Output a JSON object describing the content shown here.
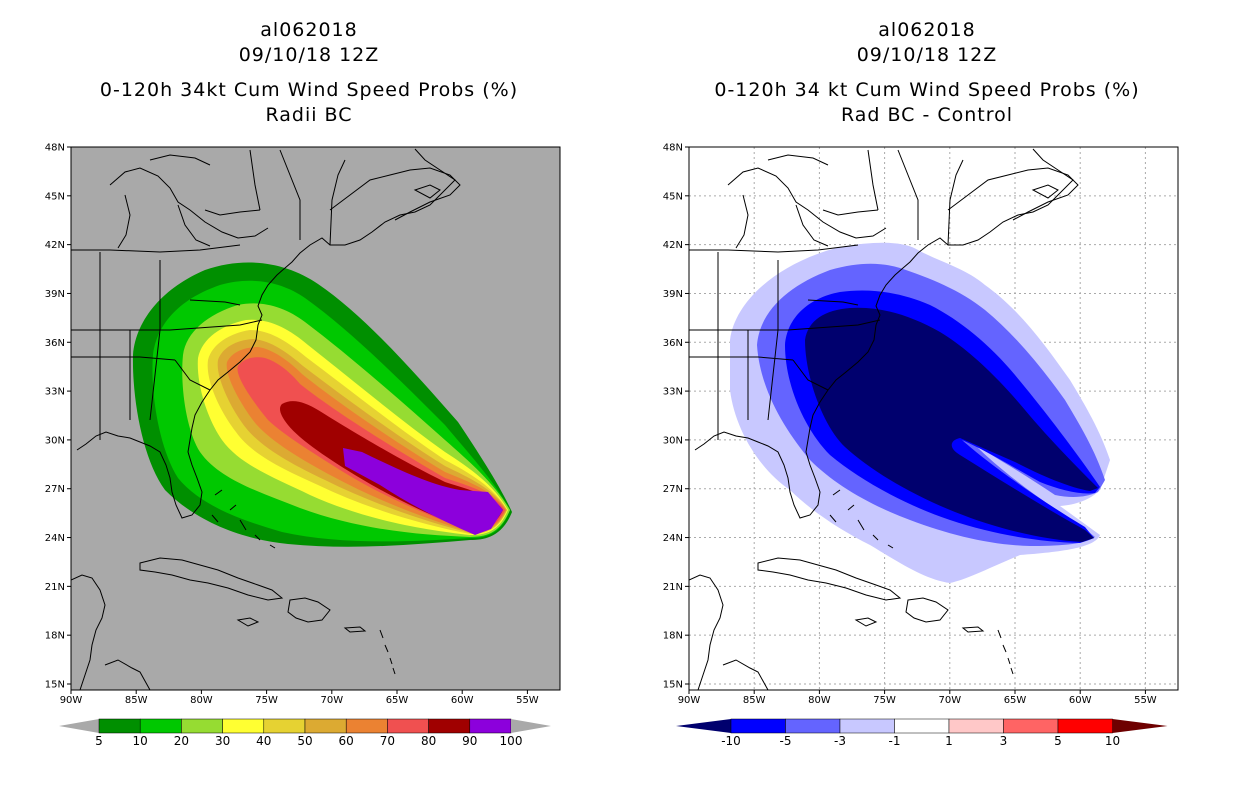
{
  "panels": {
    "left": {
      "storm": "al062018",
      "datetime": "09/10/18 12Z",
      "title": "0-120h 34kt Cum Wind Speed Probs (%)",
      "subtitle": "Radii BC",
      "background_color": "#a9a9a9"
    },
    "right": {
      "storm": "al062018",
      "datetime": "09/10/18 12Z",
      "title": "0-120h 34 kt Cum Wind Speed Probs (%)",
      "subtitle": "Rad BC - Control",
      "background_color": "#ffffff"
    }
  },
  "axes": {
    "lat_labels": [
      "48N",
      "45N",
      "42N",
      "39N",
      "36N",
      "33N",
      "30N",
      "27N",
      "24N",
      "21N",
      "18N",
      "15N"
    ],
    "lon_labels": [
      "90W",
      "85W",
      "80W",
      "75W",
      "70W",
      "65W",
      "60W",
      "55W"
    ]
  },
  "colorbars": {
    "left": {
      "colors": [
        "#008f00",
        "#00c800",
        "#96dc32",
        "#ffff32",
        "#e6d232",
        "#dcaa32",
        "#eb8232",
        "#f05050",
        "#a00000",
        "#8c00dc"
      ],
      "under_color": "#a9a9a9",
      "over_color": "#a9a9a9",
      "labels": [
        "5",
        "10",
        "20",
        "30",
        "40",
        "50",
        "60",
        "70",
        "80",
        "90",
        "100"
      ]
    },
    "right": {
      "colors": [
        "#00006e",
        "#0000ff",
        "#6464ff",
        "#c8c8ff",
        "#ffffff",
        "#ffc8c8",
        "#ff6464",
        "#ff0000",
        "#6e0000"
      ],
      "labels": [
        "-10",
        "-5",
        "-3",
        "-1",
        "1",
        "3",
        "5",
        "10"
      ]
    }
  },
  "map_colors": {
    "g5": "#008f00",
    "g10": "#00c800",
    "g20": "#96dc32",
    "g30": "#ffff32",
    "g40": "#e6d232",
    "g50": "#dcaa32",
    "g60": "#eb8232",
    "g70": "#f05050",
    "g80": "#a00000",
    "g90": "#8c00dc",
    "b1": "#c8c8ff",
    "b3": "#6464ff",
    "b5": "#0000ff",
    "b10": "#00006e"
  }
}
